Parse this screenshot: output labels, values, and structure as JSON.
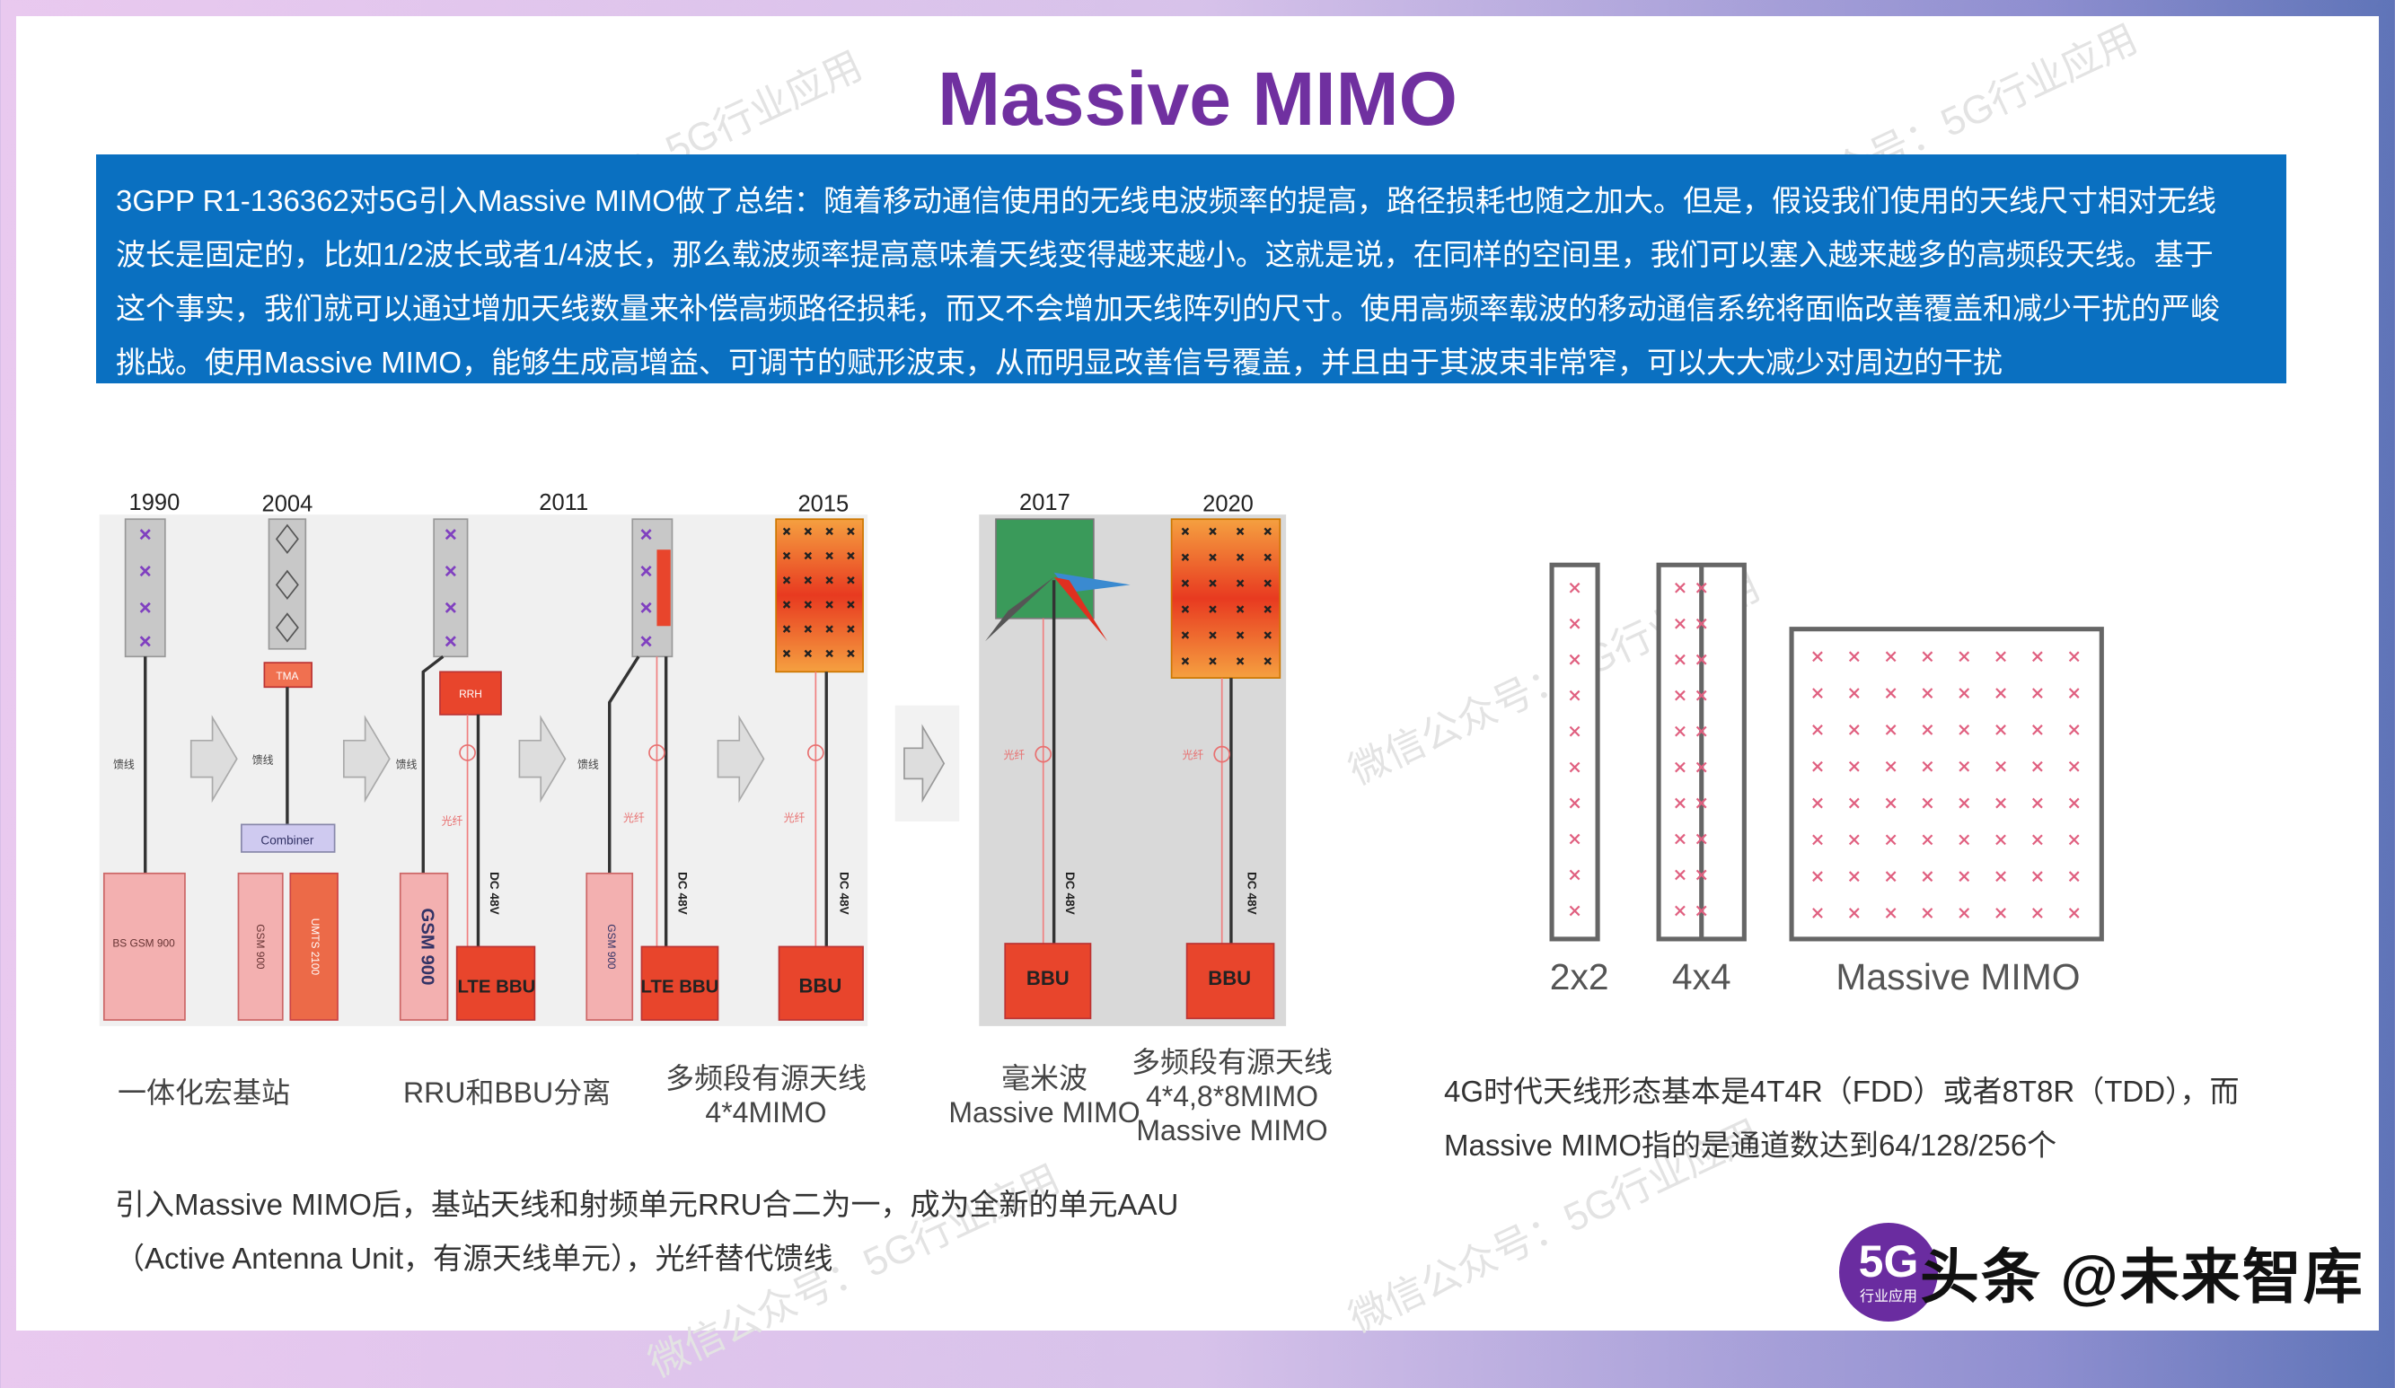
{
  "title": "Massive MIMO",
  "summary_lines": [
    "3GPP R1-136362对5G引入Massive MIMO做了总结：随着移动通信使用的无线电波频率的提高，路径损耗也随之加大。但是，假设我们使用的天线尺寸相对无线",
    "波长是固定的，比如1/2波长或者1/4波长，那么载波频率提高意味着天线变得越来越小。这就是说，在同样的空间里，我们可以塞入越来越多的高频段天线。基于",
    "这个事实，我们就可以通过增加天线数量来补偿高频路径损耗，而又不会增加天线阵列的尺寸。使用高频率载波的移动通信系统将面临改善覆盖和减少干扰的严峻",
    "挑战。使用Massive MIMO，能够生成高增益、可调节的赋形波束，从而明显改善信号覆盖，并且由于其波束非常窄，可以大大减少对周边的干扰"
  ],
  "evolution": {
    "years": [
      "1990",
      "2004",
      "2011",
      "2015",
      "2017",
      "2020"
    ],
    "box_labels": {
      "bs_gsm900": "BS GSM 900",
      "tma": "TMA",
      "combiner": "Combiner",
      "gsm900": "GSM 900",
      "umts2100": "UMTS 2100",
      "rrh": "RRH",
      "lte_bbu": "LTE BBU",
      "bbu": "BBU",
      "feeder": "馈线",
      "fiber": "光纤",
      "dc48v": "DC 48V"
    },
    "captions": {
      "integrated": "一体化宏基站",
      "rru_bbu": "RRU和BBU分离",
      "active_4x4_l1": "多频段有源天线",
      "active_4x4_l2": "4*4MIMO",
      "mmwave_l1": "毫米波",
      "mmwave_l2": "Massive MIMO",
      "active_mm_l1": "多频段有源天线",
      "active_mm_l2": "4*4,8*8MIMO",
      "active_mm_l3": "Massive MIMO"
    }
  },
  "antenna_forms": {
    "labels": [
      "2x2",
      "4x4",
      "Massive MIMO"
    ]
  },
  "bottom_left_text": [
    "引入Massive MIMO后，基站天线和射频单元RRU合二为一，成为全新的单元AAU",
    "（Active Antenna Unit，有源天线单元），光纤替代馈线"
  ],
  "right_text": [
    "4G时代天线形态基本是4T4R（FDD）或者8T8R（TDD），而",
    "Massive MIMO指的是通道数达到64/128/256个"
  ],
  "logo": {
    "badge_big": "5G",
    "badge_small": "行业应用",
    "text": "头条 @未来智库"
  },
  "watermark": "微信公众号：5G行业应用",
  "colors": {
    "title": "#7030a0",
    "summary_bg": "#0a70c1",
    "bbu": "#e8452c",
    "array": "#f5a040"
  }
}
